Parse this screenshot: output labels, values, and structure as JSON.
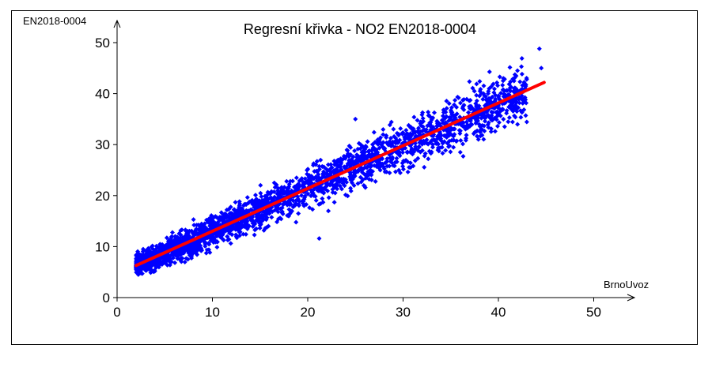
{
  "chart_data": {
    "type": "scatter",
    "title": "Regresní křivka - NO2 EN2018-0004",
    "xlabel": "BrnoUvoz",
    "ylabel": "EN2018-0004",
    "xlim": [
      0,
      50
    ],
    "ylim": [
      0,
      50
    ],
    "xticks": [
      "0",
      "10",
      "20",
      "30",
      "40",
      "50"
    ],
    "yticks": [
      "0",
      "10",
      "20",
      "30",
      "40",
      "50"
    ],
    "grid": false,
    "colors": {
      "points": "#0000ff",
      "regression": "#ff0000",
      "axes": "#000000"
    },
    "regression_line": {
      "x": [
        2,
        44.8
      ],
      "y": [
        6.3,
        42.2
      ]
    },
    "scatter_cloud": {
      "x_range": [
        2,
        44.5
      ],
      "trend": {
        "slope": 0.84,
        "intercept": 4.6
      },
      "spread": 2.2,
      "notable_points": [
        {
          "x": 44.3,
          "y": 48.8
        },
        {
          "x": 44.5,
          "y": 45.0
        },
        {
          "x": 42.0,
          "y": 44.5
        },
        {
          "x": 42.0,
          "y": 40.5
        },
        {
          "x": 21.2,
          "y": 11.6
        },
        {
          "x": 36.0,
          "y": 28.5
        },
        {
          "x": 25.0,
          "y": 35.0
        },
        {
          "x": 2.5,
          "y": 4.8
        }
      ]
    }
  }
}
